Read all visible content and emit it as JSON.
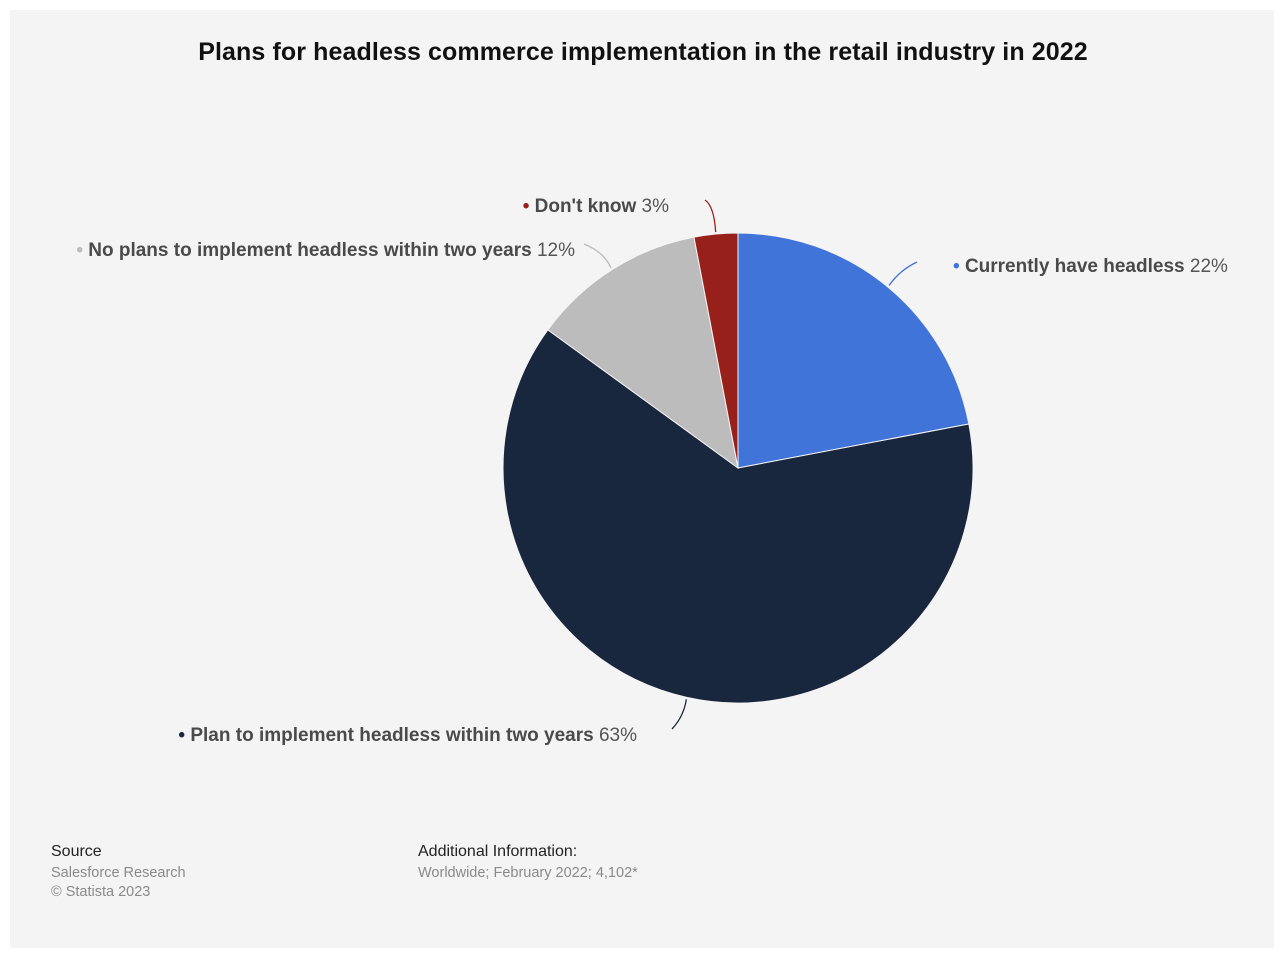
{
  "chart_data": {
    "type": "pie",
    "title": "Plans for headless commerce implementation in the retail industry in 2022",
    "unit": "%",
    "slices": [
      {
        "label": "Currently have headless",
        "value": 22,
        "color": "#4174d9"
      },
      {
        "label": "Plan to implement headless within two years",
        "value": 63,
        "color": "#18273e"
      },
      {
        "label": "No plans to implement headless within two years",
        "value": 12,
        "color": "#bcbcbc"
      },
      {
        "label": "Don't know",
        "value": 3,
        "color": "#98201a"
      }
    ]
  },
  "footer": {
    "source_heading": "Source",
    "source_lines": [
      "Salesforce Research",
      "© Statista 2023"
    ],
    "info_heading": "Additional Information:",
    "info_lines": [
      "Worldwide; February 2022; 4,102*"
    ]
  }
}
